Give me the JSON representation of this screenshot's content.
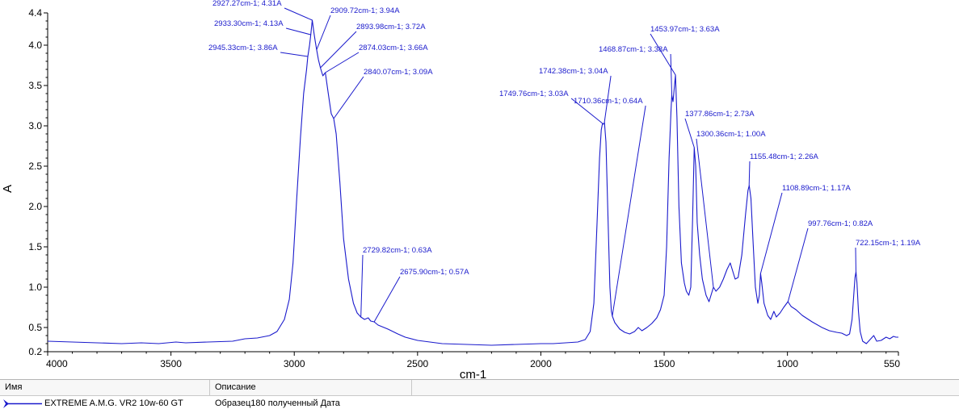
{
  "chart_data": {
    "type": "line",
    "xlabel": "cm-1",
    "ylabel": "A",
    "xlim": [
      4000,
      550
    ],
    "ylim": [
      0.2,
      4.4
    ],
    "x_reversed": true,
    "grid": false,
    "x_ticks": [
      {
        "value": 4000,
        "label": "4000"
      },
      {
        "value": 3500,
        "label": "3500"
      },
      {
        "value": 3000,
        "label": "3000"
      },
      {
        "value": 2500,
        "label": "2500"
      },
      {
        "value": 2000,
        "label": "2000"
      },
      {
        "value": 1500,
        "label": "1500"
      },
      {
        "value": 1000,
        "label": "1000"
      },
      {
        "value": 550,
        "label": "550"
      }
    ],
    "y_ticks": [
      {
        "value": 0.2,
        "label": "0.2"
      },
      {
        "value": 0.5,
        "label": "0.5"
      },
      {
        "value": 1.0,
        "label": "1.0"
      },
      {
        "value": 1.5,
        "label": "1.5"
      },
      {
        "value": 2.0,
        "label": "2.0"
      },
      {
        "value": 2.5,
        "label": "2.5"
      },
      {
        "value": 3.0,
        "label": "3.0"
      },
      {
        "value": 3.5,
        "label": "3.5"
      },
      {
        "value": 4.0,
        "label": "4.0"
      },
      {
        "value": 4.4,
        "label": "4.4"
      }
    ],
    "series": [
      {
        "name": "EXTREME A.M.G. VR2 10w-60 GT",
        "color": "#1a1acc",
        "points": [
          [
            4000,
            0.33
          ],
          [
            3800,
            0.31
          ],
          [
            3700,
            0.3
          ],
          [
            3620,
            0.31
          ],
          [
            3550,
            0.3
          ],
          [
            3480,
            0.32
          ],
          [
            3440,
            0.31
          ],
          [
            3350,
            0.32
          ],
          [
            3250,
            0.33
          ],
          [
            3200,
            0.36
          ],
          [
            3150,
            0.37
          ],
          [
            3100,
            0.4
          ],
          [
            3070,
            0.45
          ],
          [
            3040,
            0.6
          ],
          [
            3020,
            0.85
          ],
          [
            3005,
            1.3
          ],
          [
            2990,
            2.1
          ],
          [
            2975,
            2.85
          ],
          [
            2962,
            3.4
          ],
          [
            2950,
            3.7
          ],
          [
            2945,
            3.86
          ],
          [
            2938,
            4.0
          ],
          [
            2933,
            4.13
          ],
          [
            2927,
            4.31
          ],
          [
            2920,
            4.15
          ],
          [
            2915,
            4.05
          ],
          [
            2909,
            3.94
          ],
          [
            2902,
            3.82
          ],
          [
            2894,
            3.72
          ],
          [
            2884,
            3.62
          ],
          [
            2874,
            3.66
          ],
          [
            2862,
            3.4
          ],
          [
            2850,
            3.15
          ],
          [
            2840,
            3.09
          ],
          [
            2830,
            2.9
          ],
          [
            2815,
            2.3
          ],
          [
            2800,
            1.6
          ],
          [
            2780,
            1.1
          ],
          [
            2760,
            0.8
          ],
          [
            2745,
            0.68
          ],
          [
            2730,
            0.63
          ],
          [
            2715,
            0.6
          ],
          [
            2700,
            0.62
          ],
          [
            2690,
            0.58
          ],
          [
            2676,
            0.57
          ],
          [
            2660,
            0.53
          ],
          [
            2620,
            0.48
          ],
          [
            2580,
            0.42
          ],
          [
            2550,
            0.38
          ],
          [
            2500,
            0.34
          ],
          [
            2450,
            0.32
          ],
          [
            2400,
            0.3
          ],
          [
            2300,
            0.29
          ],
          [
            2200,
            0.28
          ],
          [
            2100,
            0.29
          ],
          [
            2000,
            0.3
          ],
          [
            1950,
            0.3
          ],
          [
            1900,
            0.31
          ],
          [
            1850,
            0.32
          ],
          [
            1820,
            0.35
          ],
          [
            1800,
            0.45
          ],
          [
            1785,
            0.8
          ],
          [
            1772,
            1.8
          ],
          [
            1762,
            2.6
          ],
          [
            1755,
            2.95
          ],
          [
            1750,
            3.03
          ],
          [
            1746,
            3.02
          ],
          [
            1742,
            3.04
          ],
          [
            1736,
            2.8
          ],
          [
            1728,
            1.9
          ],
          [
            1720,
            1.0
          ],
          [
            1714,
            0.7
          ],
          [
            1710,
            0.64
          ],
          [
            1700,
            0.56
          ],
          [
            1680,
            0.48
          ],
          [
            1660,
            0.44
          ],
          [
            1640,
            0.42
          ],
          [
            1620,
            0.45
          ],
          [
            1605,
            0.5
          ],
          [
            1590,
            0.46
          ],
          [
            1570,
            0.5
          ],
          [
            1550,
            0.55
          ],
          [
            1530,
            0.62
          ],
          [
            1515,
            0.72
          ],
          [
            1500,
            0.9
          ],
          [
            1490,
            1.5
          ],
          [
            1480,
            2.6
          ],
          [
            1472,
            3.2
          ],
          [
            1469,
            3.38
          ],
          [
            1464,
            3.3
          ],
          [
            1458,
            3.5
          ],
          [
            1454,
            3.63
          ],
          [
            1448,
            3.1
          ],
          [
            1440,
            2.0
          ],
          [
            1430,
            1.3
          ],
          [
            1418,
            1.05
          ],
          [
            1410,
            0.95
          ],
          [
            1400,
            0.9
          ],
          [
            1392,
            1.0
          ],
          [
            1385,
            1.8
          ],
          [
            1378,
            2.73
          ],
          [
            1372,
            2.5
          ],
          [
            1366,
            1.8
          ],
          [
            1356,
            1.4
          ],
          [
            1345,
            1.1
          ],
          [
            1330,
            0.9
          ],
          [
            1318,
            0.82
          ],
          [
            1300,
            1.0
          ],
          [
            1290,
            0.95
          ],
          [
            1275,
            1.0
          ],
          [
            1260,
            1.1
          ],
          [
            1245,
            1.22
          ],
          [
            1232,
            1.3
          ],
          [
            1222,
            1.2
          ],
          [
            1212,
            1.1
          ],
          [
            1200,
            1.12
          ],
          [
            1185,
            1.4
          ],
          [
            1170,
            1.9
          ],
          [
            1160,
            2.2
          ],
          [
            1155,
            2.26
          ],
          [
            1148,
            2.1
          ],
          [
            1140,
            1.6
          ],
          [
            1130,
            1.0
          ],
          [
            1120,
            0.8
          ],
          [
            1114,
            0.9
          ],
          [
            1109,
            1.17
          ],
          [
            1104,
            1.05
          ],
          [
            1095,
            0.8
          ],
          [
            1080,
            0.65
          ],
          [
            1068,
            0.6
          ],
          [
            1055,
            0.7
          ],
          [
            1045,
            0.63
          ],
          [
            1030,
            0.68
          ],
          [
            1015,
            0.75
          ],
          [
            998,
            0.82
          ],
          [
            985,
            0.76
          ],
          [
            965,
            0.72
          ],
          [
            940,
            0.65
          ],
          [
            900,
            0.57
          ],
          [
            860,
            0.5
          ],
          [
            830,
            0.46
          ],
          [
            800,
            0.44
          ],
          [
            780,
            0.43
          ],
          [
            760,
            0.4
          ],
          [
            748,
            0.42
          ],
          [
            738,
            0.6
          ],
          [
            730,
            0.95
          ],
          [
            726,
            1.12
          ],
          [
            722,
            1.19
          ],
          [
            718,
            1.05
          ],
          [
            712,
            0.7
          ],
          [
            705,
            0.45
          ],
          [
            695,
            0.33
          ],
          [
            680,
            0.3
          ],
          [
            665,
            0.35
          ],
          [
            650,
            0.4
          ],
          [
            638,
            0.33
          ],
          [
            620,
            0.34
          ],
          [
            600,
            0.38
          ],
          [
            585,
            0.36
          ],
          [
            570,
            0.39
          ],
          [
            560,
            0.38
          ],
          [
            550,
            0.38
          ]
        ]
      }
    ],
    "annotations": [
      {
        "x": 2927.27,
        "y": 4.31,
        "text": "2927.27cm-1; 4.31A"
      },
      {
        "x": 2909.72,
        "y": 3.94,
        "text": "2909.72cm-1; 3.94A"
      },
      {
        "x": 2933.3,
        "y": 4.13,
        "text": "2933.30cm-1; 4.13A"
      },
      {
        "x": 2893.98,
        "y": 3.72,
        "text": "2893.98cm-1; 3.72A"
      },
      {
        "x": 2945.33,
        "y": 3.86,
        "text": "2945.33cm-1; 3.86A"
      },
      {
        "x": 2874.03,
        "y": 3.66,
        "text": "2874.03cm-1; 3.66A"
      },
      {
        "x": 2840.07,
        "y": 3.09,
        "text": "2840.07cm-1; 3.09A"
      },
      {
        "x": 2729.82,
        "y": 0.63,
        "text": "2729.82cm-1; 0.63A"
      },
      {
        "x": 2675.9,
        "y": 0.57,
        "text": "2675.90cm-1; 0.57A"
      },
      {
        "x": 1742.38,
        "y": 3.04,
        "text": "1742.38cm-1; 3.04A"
      },
      {
        "x": 1749.76,
        "y": 3.03,
        "text": "1749.76cm-1; 3.03A"
      },
      {
        "x": 1710.36,
        "y": 0.64,
        "text": "1710.36cm-1; 0.64A"
      },
      {
        "x": 1453.97,
        "y": 3.63,
        "text": "1453.97cm-1; 3.63A"
      },
      {
        "x": 1468.87,
        "y": 3.38,
        "text": "1468.87cm-1; 3.38A"
      },
      {
        "x": 1377.86,
        "y": 2.73,
        "text": "1377.86cm-1; 2.73A"
      },
      {
        "x": 1300.36,
        "y": 1.0,
        "text": "1300.36cm-1; 1.00A"
      },
      {
        "x": 1155.48,
        "y": 2.26,
        "text": "1155.48cm-1; 2.26A"
      },
      {
        "x": 1108.89,
        "y": 1.17,
        "text": "1108.89cm-1; 1.17A"
      },
      {
        "x": 997.76,
        "y": 0.82,
        "text": "997.76cm-1; 0.82A"
      },
      {
        "x": 722.15,
        "y": 1.19,
        "text": "722.15cm-1; 1.19A"
      }
    ]
  },
  "legend": {
    "headers": {
      "name": "Имя",
      "description": "Описание"
    },
    "rows": [
      {
        "name": "EXTREME A.M.G. VR2 10w-60 GT",
        "description": "Образец180 полученный  Дата",
        "color": "#1a1acc"
      }
    ]
  }
}
